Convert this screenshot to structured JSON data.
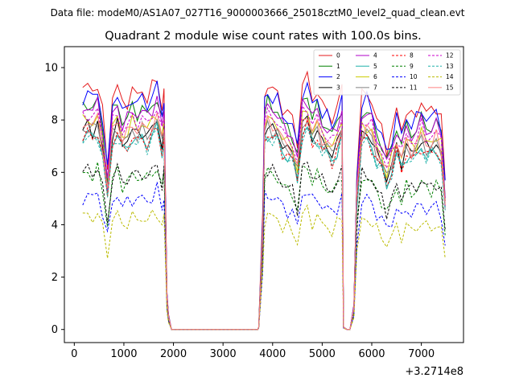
{
  "header": {
    "filename": "Data file: modeM0/AS1A07_027T16_9000003666_25018cztM0_level2_quad_clean.evt"
  },
  "chart_data": {
    "type": "line",
    "title": "Quadrant 2 module wise count rates with 100.0s bins.",
    "xlabel": "",
    "ylabel": "",
    "x_offset_label": "+3.2714e8",
    "xlim": [
      -200,
      7850
    ],
    "ylim": [
      -0.5,
      10.8
    ],
    "xticks": [
      0,
      1000,
      2000,
      3000,
      4000,
      5000,
      6000,
      7000
    ],
    "xtick_labels": [
      "0",
      "1000",
      "2000",
      "3000",
      "4000",
      "5000",
      "6000",
      "7000"
    ],
    "yticks": [
      0,
      2,
      4,
      6,
      8,
      10
    ],
    "ytick_labels": [
      "0",
      "2",
      "4",
      "6",
      "8",
      "10"
    ],
    "legend_position": "top-right",
    "x": [
      170,
      270,
      370,
      470,
      570,
      670,
      770,
      870,
      970,
      1070,
      1170,
      1270,
      1370,
      1470,
      1570,
      1670,
      1770,
      1810,
      1870,
      1900,
      1960,
      2000,
      3700,
      3720,
      3800,
      3840,
      3900,
      4000,
      4100,
      4200,
      4300,
      4400,
      4500,
      4600,
      4700,
      4800,
      4900,
      5000,
      5100,
      5200,
      5300,
      5400,
      5430,
      5500,
      5560,
      5640,
      5700,
      5800,
      5900,
      6000,
      6100,
      6200,
      6300,
      6400,
      6500,
      6600,
      6700,
      6800,
      6900,
      7000,
      7100,
      7200,
      7300,
      7400,
      7480
    ],
    "profile": [
      0.95,
      0.97,
      0.95,
      0.98,
      0.86,
      0.65,
      0.93,
      0.97,
      0.89,
      0.91,
      0.95,
      0.93,
      0.95,
      0.92,
      0.96,
      1.0,
      0.88,
      0.95,
      0.15,
      0.06,
      0.0,
      0.0,
      0.0,
      0.01,
      0.45,
      0.94,
      0.97,
      0.95,
      0.94,
      0.88,
      0.86,
      0.84,
      0.74,
      0.98,
      1.0,
      0.92,
      0.95,
      0.89,
      0.87,
      0.84,
      0.88,
      0.96,
      0.01,
      0.0,
      0.0,
      0.1,
      0.63,
      0.93,
      0.94,
      0.91,
      0.83,
      0.8,
      0.72,
      0.78,
      0.87,
      0.8,
      0.87,
      0.84,
      0.86,
      0.91,
      0.86,
      0.87,
      0.89,
      0.84,
      0.59
    ],
    "series": [
      {
        "name": "0",
        "level": 9.6,
        "color": "#e41a1c",
        "style": "solid"
      },
      {
        "name": "1",
        "level": 8.9,
        "color": "#008000",
        "style": "solid"
      },
      {
        "name": "2",
        "level": 9.3,
        "color": "#0000ff",
        "style": "solid"
      },
      {
        "name": "3",
        "level": 8.0,
        "color": "#000000",
        "style": "solid"
      },
      {
        "name": "4",
        "level": 8.8,
        "color": "#b000c8",
        "style": "solid"
      },
      {
        "name": "5",
        "level": 7.7,
        "color": "#20b2aa",
        "style": "solid"
      },
      {
        "name": "6",
        "level": 8.3,
        "color": "#cccc00",
        "style": "solid"
      },
      {
        "name": "7",
        "level": 8.0,
        "color": "#808080",
        "style": "solid"
      },
      {
        "name": "8",
        "level": 7.7,
        "color": "#ff0000",
        "style": "dashed"
      },
      {
        "name": "9",
        "level": 6.2,
        "color": "#008000",
        "style": "dashed"
      },
      {
        "name": "10",
        "level": 5.3,
        "color": "#0000ff",
        "style": "dashed"
      },
      {
        "name": "11",
        "level": 6.3,
        "color": "#000000",
        "style": "dashed"
      },
      {
        "name": "12",
        "level": 8.5,
        "color": "#cc00cc",
        "style": "dashed"
      },
      {
        "name": "13",
        "level": 7.6,
        "color": "#20b2aa",
        "style": "dashed"
      },
      {
        "name": "14",
        "level": 4.5,
        "color": "#bbbb00",
        "style": "dashed"
      },
      {
        "name": "15",
        "level": 8.2,
        "color": "#ff8080",
        "style": "solid"
      }
    ]
  }
}
